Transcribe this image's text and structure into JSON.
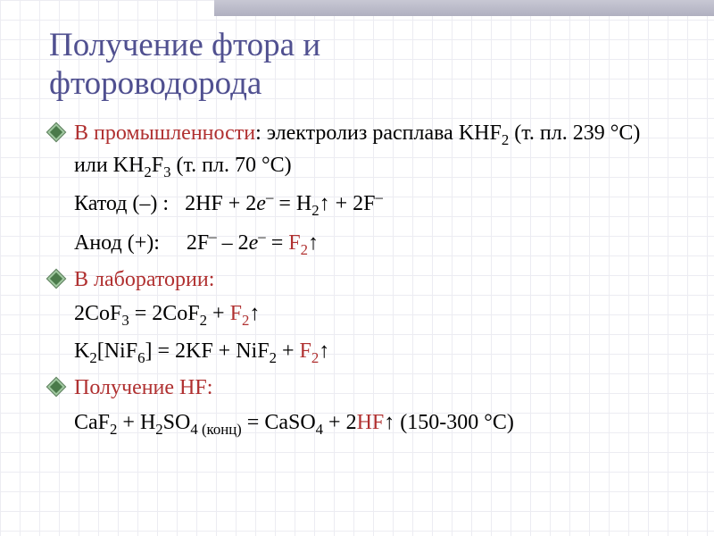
{
  "title_line1": "Получение фтора и",
  "title_line2": "фтороводорода",
  "sections": {
    "industry": {
      "label_pre": "В промышленности",
      "label_post": ": электролиз расплава KHF",
      "label_cont": " (т. пл. 239 °С) или KH",
      "label_end": " (т. пл. 70 °С)",
      "cathode_label": "Катод (–) :",
      "cathode_eq_a": "2HF + 2",
      "cathode_eq_b": " = H",
      "cathode_eq_c": " + 2F",
      "anode_label": "Анод (+):",
      "anode_eq_a": "2F",
      "anode_eq_b": " – 2",
      "anode_eq_c": " = ",
      "anode_f2": "F"
    },
    "lab": {
      "label": "В лаборатории:",
      "eq1_a": "2CoF",
      "eq1_b": " = 2CoF",
      "eq1_c": " + ",
      "eq1_f2": "F",
      "eq2_a": "K",
      "eq2_b": "[NiF",
      "eq2_c": "] = 2KF + NiF",
      "eq2_d": " + ",
      "eq2_f2": "F"
    },
    "hf": {
      "label": "Получение HF:",
      "eq_a": "CaF",
      "eq_b": " + H",
      "eq_c": "SO",
      "eq_conc": "4 (конц)",
      "eq_d": " = CaSO",
      "eq_e": " + 2",
      "eq_hf": "HF",
      "eq_temp": " (150-300 °С)"
    }
  },
  "style": {
    "title_color": "#505090",
    "red_color": "#b03030",
    "body_fontsize": 24,
    "title_fontsize": 37
  }
}
